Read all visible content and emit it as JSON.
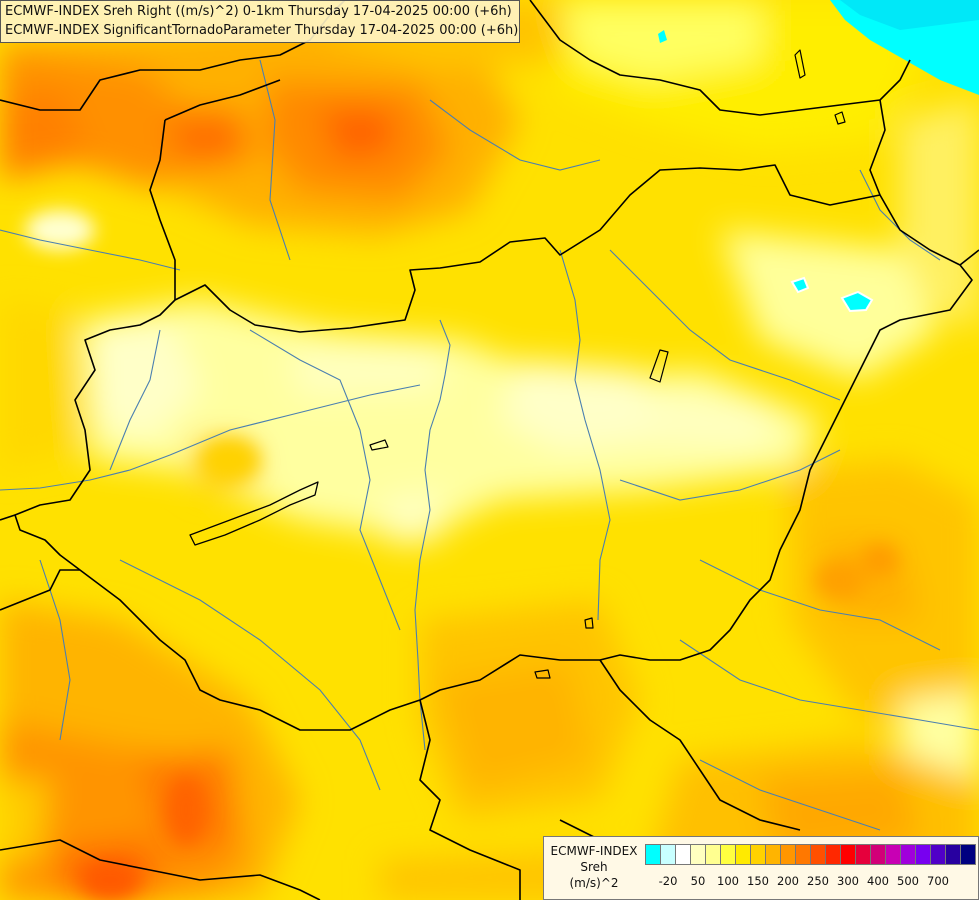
{
  "titles": {
    "line1": "ECMWF-INDEX Sreh Right ((m/s)^2) 0-1km Thursday 17-04-2025 00:00 (+6h)",
    "line2": "ECMWF-INDEX SignificantTornadoParameter Thursday 17-04-2025 00:00 (+6h)"
  },
  "legend": {
    "model": "ECMWF-INDEX",
    "parameter": "Sreh",
    "unit": "(m/s)^2",
    "colors": [
      "#00ffff",
      "#c8ffff",
      "#ffffff",
      "#ffffc0",
      "#ffff90",
      "#ffff40",
      "#ffea00",
      "#ffd200",
      "#ffb400",
      "#ff9600",
      "#ff7800",
      "#ff5000",
      "#ff2800",
      "#ff0000",
      "#e6003c",
      "#d20078",
      "#c800b4",
      "#a000dc",
      "#7800f0",
      "#5000c8",
      "#2800a0",
      "#000080"
    ],
    "tick_labels": [
      "-20",
      "50",
      "100",
      "150",
      "200",
      "250",
      "300",
      "400",
      "500",
      "700"
    ]
  },
  "palette": {
    "background": "#ffe100",
    "sea": "#00ffff",
    "border_line": "#000000",
    "river_line": "#4a7fb0"
  }
}
